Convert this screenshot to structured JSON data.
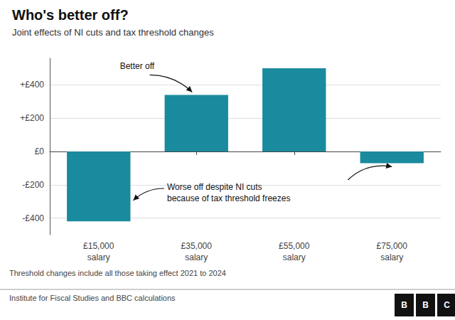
{
  "chart_data": {
    "type": "bar",
    "title": "Who's better off?",
    "subtitle": "Joint effects of NI cuts and tax threshold changes",
    "categories": [
      "£15,000\nsalary",
      "£35,000\nsalary",
      "£55,000\nsalary",
      "£75,000\nsalary"
    ],
    "values": [
      -420,
      340,
      500,
      -70
    ],
    "color": "#1a8a9e",
    "ylim": [
      -500,
      560
    ],
    "yticks": [
      {
        "value": -400,
        "label": "-£400"
      },
      {
        "value": -200,
        "label": "-£200"
      },
      {
        "value": 0,
        "label": "£0"
      },
      {
        "value": 200,
        "label": "+£200"
      },
      {
        "value": 400,
        "label": "+£400"
      }
    ],
    "grid": true,
    "annotations": [
      "Better off",
      "Worse off despite NI cuts\nbecause of tax threshold freezes"
    ],
    "footnotes": [
      "Threshold changes include all those taking effect 2021 to 2024",
      "Institute for Fiscal Studies and BBC calculations"
    ],
    "logo": [
      "B",
      "B",
      "C"
    ]
  }
}
